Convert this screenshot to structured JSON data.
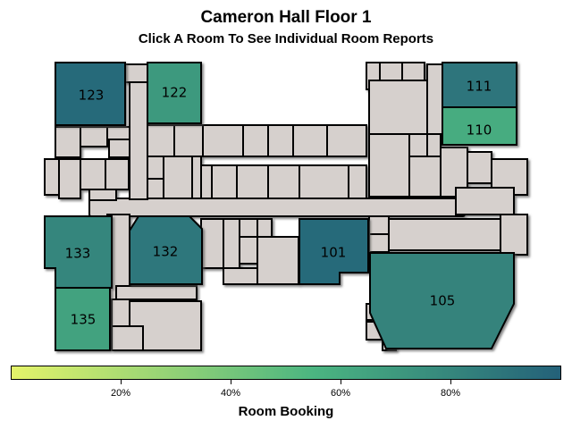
{
  "header": {
    "title": "Cameron Hall Floor 1",
    "subtitle": "Click A Room To See Individual Room Reports"
  },
  "colors": {
    "other_space": "#d6d0cd",
    "wall": "#000000",
    "scale_low": "#e4f36a",
    "scale_mid": "#4bb581",
    "scale_high": "#246179"
  },
  "rooms": [
    {
      "id": "123",
      "label": "123",
      "booking_pct": 95
    },
    {
      "id": "122",
      "label": "122",
      "booking_pct": 70
    },
    {
      "id": "111",
      "label": "111",
      "booking_pct": 90
    },
    {
      "id": "110",
      "label": "110",
      "booking_pct": 60
    },
    {
      "id": "133",
      "label": "133",
      "booking_pct": 80
    },
    {
      "id": "132",
      "label": "132",
      "booking_pct": 88
    },
    {
      "id": "101",
      "label": "101",
      "booking_pct": 95
    },
    {
      "id": "105",
      "label": "105",
      "booking_pct": 82
    },
    {
      "id": "135",
      "label": "135",
      "booking_pct": 65
    }
  ],
  "legend": {
    "title": "Room Booking",
    "ticks": [
      "20%",
      "40%",
      "60%",
      "80%"
    ]
  }
}
